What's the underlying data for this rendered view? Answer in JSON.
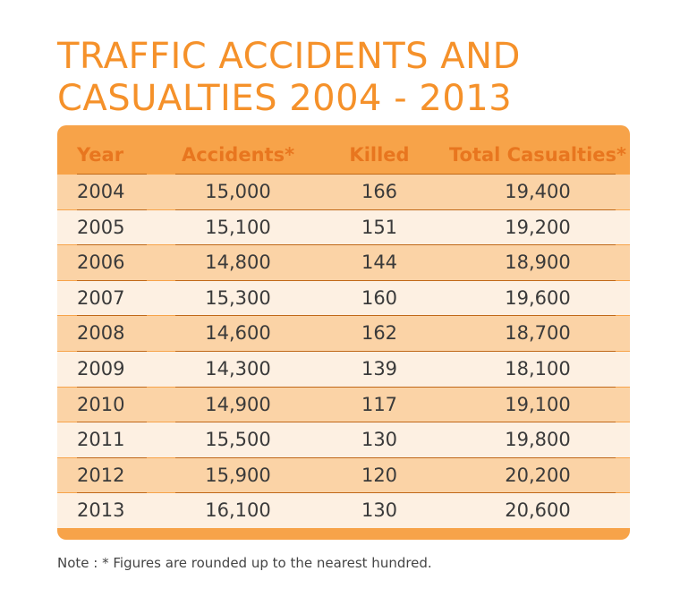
{
  "title_line1": "TRAFFIC ACCIDENTS AND",
  "title_line2": "CASUALTIES 2004 - 2013",
  "note": "Note : * Figures are rounded up to the nearest hundred.",
  "colors": {
    "accent": "#f5912a",
    "header_text": "#e8761f",
    "stripe_dark": "#fbd3a6",
    "stripe_light": "#fdf0e2"
  },
  "chart_data": {
    "type": "table",
    "title": "TRAFFIC ACCIDENTS AND CASUALTIES 2004 - 2013",
    "columns": [
      "Year",
      "Accidents*",
      "Killed",
      "Total Casualties*"
    ],
    "rows": [
      [
        "2004",
        "15,000",
        "166",
        "19,400"
      ],
      [
        "2005",
        "15,100",
        "151",
        "19,200"
      ],
      [
        "2006",
        "14,800",
        "144",
        "18,900"
      ],
      [
        "2007",
        "15,300",
        "160",
        "19,600"
      ],
      [
        "2008",
        "14,600",
        "162",
        "18,700"
      ],
      [
        "2009",
        "14,300",
        "139",
        "18,100"
      ],
      [
        "2010",
        "14,900",
        "117",
        "19,100"
      ],
      [
        "2011",
        "15,500",
        "130",
        "19,800"
      ],
      [
        "2012",
        "15,900",
        "120",
        "20,200"
      ],
      [
        "2013",
        "16,100",
        "130",
        "20,600"
      ]
    ]
  }
}
